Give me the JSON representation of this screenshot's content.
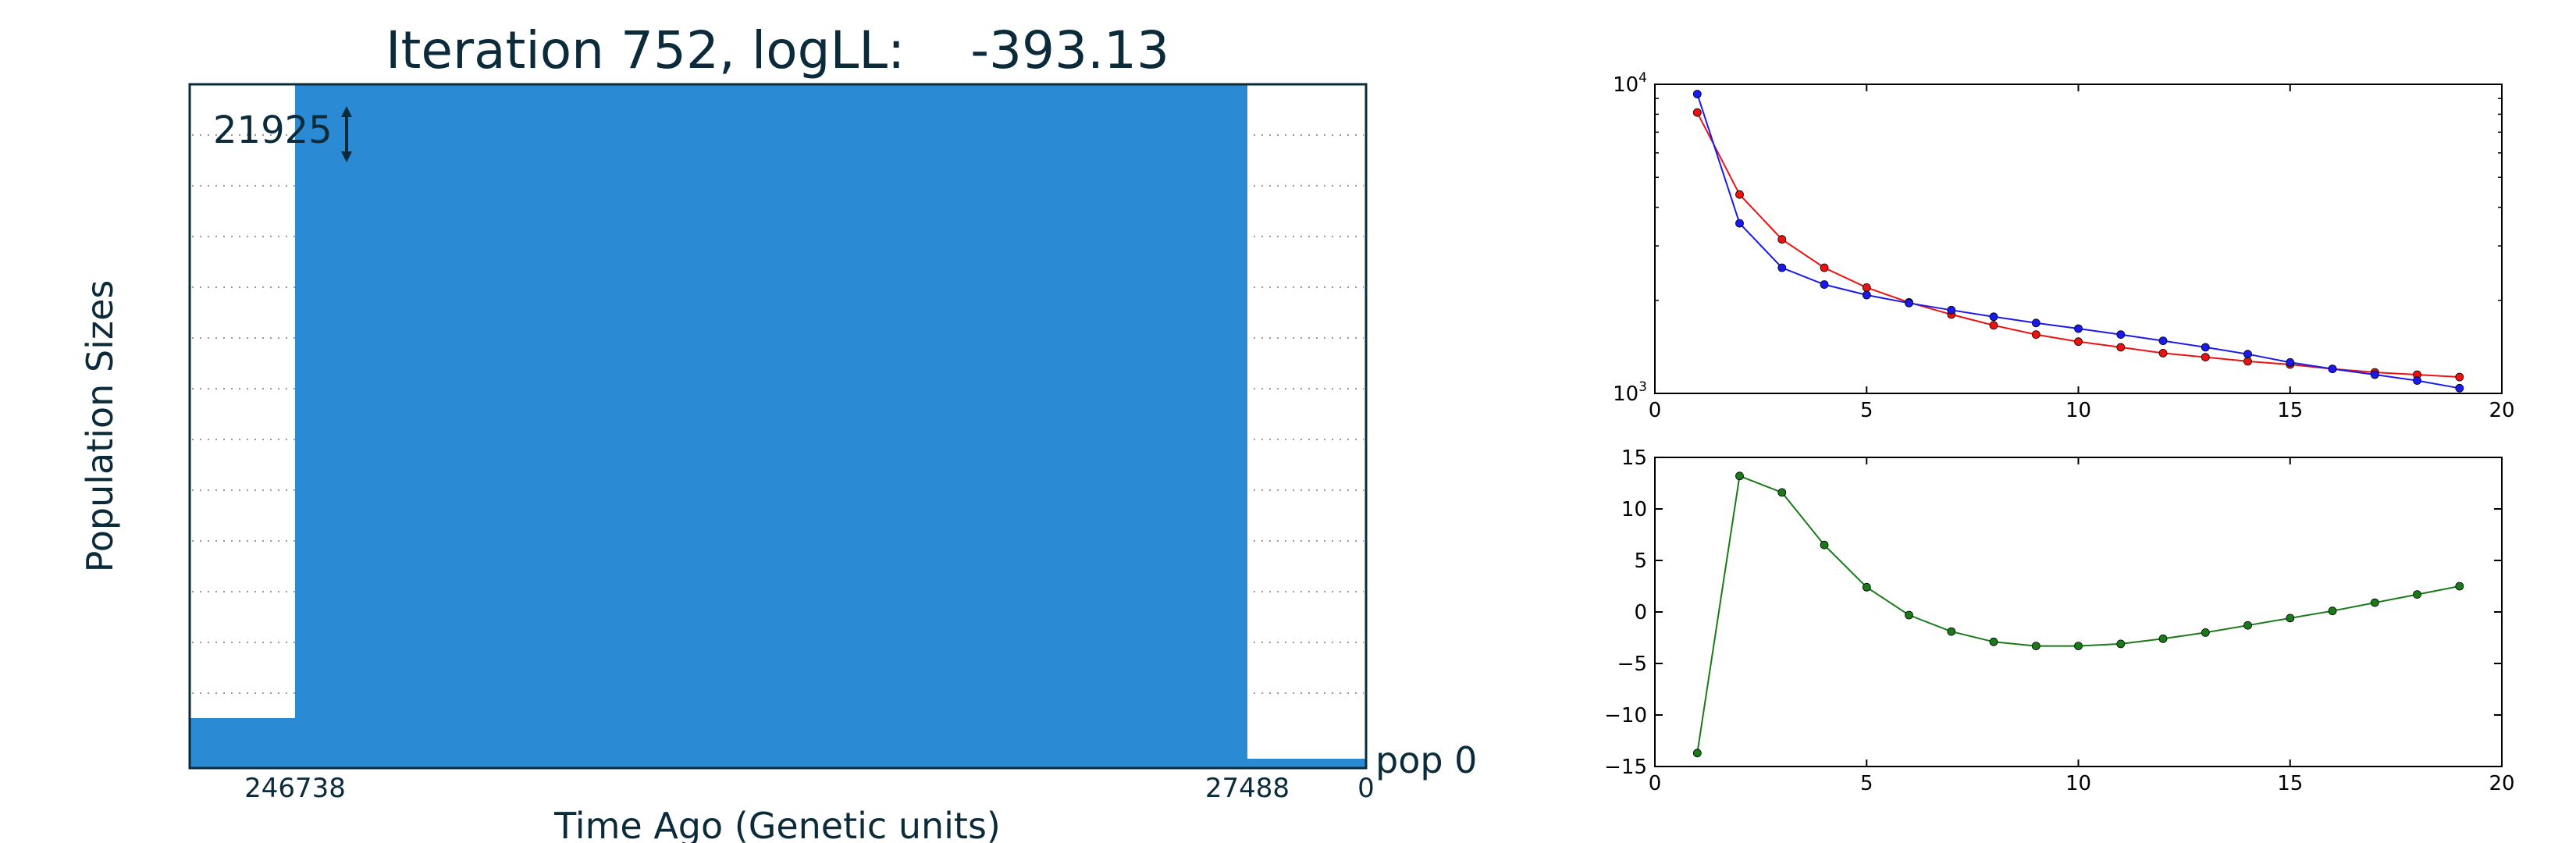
{
  "chart_data": [
    {
      "type": "area",
      "title": "Iteration 752, logLL:    -393.13",
      "xlabel": "Time Ago (Genetic units)",
      "ylabel": "Population Sizes",
      "scale_label": "21925",
      "population_label": "pop 0",
      "x_ticks": [
        "246738",
        "27488",
        "0"
      ],
      "colors": {
        "fill": "#2a8bd4",
        "frame": "#0b2b3b",
        "grid": "#9a9a9a"
      }
    },
    {
      "type": "line",
      "y_scale": "log",
      "xlim": [
        0,
        20
      ],
      "ylim": [
        1000,
        10000
      ],
      "x_ticks": [
        "0",
        "5",
        "10",
        "15",
        "20"
      ],
      "y_ticks": [
        {
          "base": "10",
          "exp": "3"
        },
        {
          "base": "10",
          "exp": "4"
        }
      ],
      "x": [
        1,
        2,
        3,
        4,
        5,
        6,
        7,
        8,
        9,
        10,
        11,
        12,
        13,
        14,
        15,
        16,
        17,
        18,
        19
      ],
      "series": [
        {
          "color": "#ee1111",
          "values": [
            8100,
            4400,
            3150,
            2550,
            2200,
            1970,
            1800,
            1660,
            1550,
            1470,
            1410,
            1350,
            1310,
            1270,
            1240,
            1200,
            1170,
            1150,
            1130
          ]
        },
        {
          "color": "#1a1aee",
          "values": [
            9300,
            3550,
            2550,
            2250,
            2080,
            1960,
            1860,
            1770,
            1690,
            1620,
            1550,
            1480,
            1410,
            1340,
            1260,
            1200,
            1150,
            1100,
            1040
          ]
        }
      ]
    },
    {
      "type": "line",
      "xlim": [
        0,
        20
      ],
      "ylim": [
        -15,
        15
      ],
      "x_ticks": [
        "0",
        "5",
        "10",
        "15",
        "20"
      ],
      "y_ticks": [
        "15",
        "10",
        "5",
        "0",
        "−5",
        "−10",
        "−15"
      ],
      "x": [
        1,
        2,
        3,
        4,
        5,
        6,
        7,
        8,
        9,
        10,
        11,
        12,
        13,
        14,
        15,
        16,
        17,
        18,
        19
      ],
      "series": [
        {
          "color": "#1a7a1a",
          "values": [
            -13.7,
            13.2,
            11.6,
            6.5,
            2.4,
            -0.3,
            -1.9,
            -2.9,
            -3.3,
            -3.3,
            -3.1,
            -2.6,
            -2.0,
            -1.3,
            -0.6,
            0.1,
            0.9,
            1.7,
            2.5
          ]
        }
      ]
    }
  ]
}
